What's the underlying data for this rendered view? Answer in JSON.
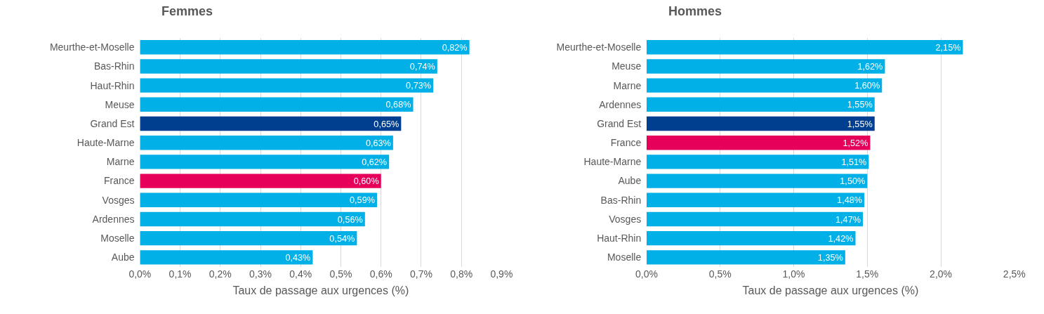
{
  "chart_data": [
    {
      "type": "bar",
      "orientation": "horizontal",
      "title": "Femmes",
      "xlabel": "Taux de passage aux urgences (%)",
      "categories": [
        "Meurthe-et-Moselle",
        "Bas-Rhin",
        "Haut-Rhin",
        "Meuse",
        "Grand Est",
        "Haute-Marne",
        "Marne",
        "France",
        "Vosges",
        "Ardennes",
        "Moselle",
        "Aube"
      ],
      "values": [
        0.82,
        0.74,
        0.73,
        0.68,
        0.65,
        0.63,
        0.62,
        0.6,
        0.59,
        0.56,
        0.54,
        0.43
      ],
      "value_labels": [
        "0,82%",
        "0,74%",
        "0,73%",
        "0,68%",
        "0,65%",
        "0,63%",
        "0,62%",
        "0,60%",
        "0,59%",
        "0,56%",
        "0,54%",
        "0,43%"
      ],
      "colors": [
        "#00b0e6",
        "#00b0e6",
        "#00b0e6",
        "#00b0e6",
        "#003f8f",
        "#00b0e6",
        "#00b0e6",
        "#e6005a",
        "#00b0e6",
        "#00b0e6",
        "#00b0e6",
        "#00b0e6"
      ],
      "xlim": [
        0,
        0.9
      ],
      "xticks": [
        {
          "value": 0,
          "label": "0,0%"
        },
        {
          "value": 0.1,
          "label": "0,1%"
        },
        {
          "value": 0.2,
          "label": "0,2%"
        },
        {
          "value": 0.3,
          "label": "0,3%"
        },
        {
          "value": 0.4,
          "label": "0,4%"
        },
        {
          "value": 0.5,
          "label": "0,5%"
        },
        {
          "value": 0.6,
          "label": "0,6%"
        },
        {
          "value": 0.7,
          "label": "0,7%"
        },
        {
          "value": 0.8,
          "label": "0,8%"
        },
        {
          "value": 0.9,
          "label": "0,9%"
        }
      ],
      "grid": "x",
      "legend": false
    },
    {
      "type": "bar",
      "orientation": "horizontal",
      "title": "Hommes",
      "xlabel": "Taux de passage aux urgences (%)",
      "categories": [
        "Meurthe-et-Moselle",
        "Meuse",
        "Marne",
        "Ardennes",
        "Grand Est",
        "France",
        "Haute-Marne",
        "Aube",
        "Bas-Rhin",
        "Vosges",
        "Haut-Rhin",
        "Moselle"
      ],
      "values": [
        2.15,
        1.62,
        1.6,
        1.55,
        1.55,
        1.52,
        1.51,
        1.5,
        1.48,
        1.47,
        1.42,
        1.35
      ],
      "value_labels": [
        "2,15%",
        "1,62%",
        "1,60%",
        "1,55%",
        "1,55%",
        "1,52%",
        "1,51%",
        "1,50%",
        "1,48%",
        "1,47%",
        "1,42%",
        "1,35%"
      ],
      "colors": [
        "#00b0e6",
        "#00b0e6",
        "#00b0e6",
        "#00b0e6",
        "#003f8f",
        "#e6005a",
        "#00b0e6",
        "#00b0e6",
        "#00b0e6",
        "#00b0e6",
        "#00b0e6",
        "#00b0e6"
      ],
      "xlim": [
        0,
        2.5
      ],
      "xticks": [
        {
          "value": 0,
          "label": "0,0%"
        },
        {
          "value": 0.5,
          "label": "0,5%"
        },
        {
          "value": 1.0,
          "label": "1,0%"
        },
        {
          "value": 1.5,
          "label": "1,5%"
        },
        {
          "value": 2.0,
          "label": "2,0%"
        },
        {
          "value": 2.5,
          "label": "2,5%"
        }
      ],
      "grid": "x",
      "legend": false
    }
  ]
}
